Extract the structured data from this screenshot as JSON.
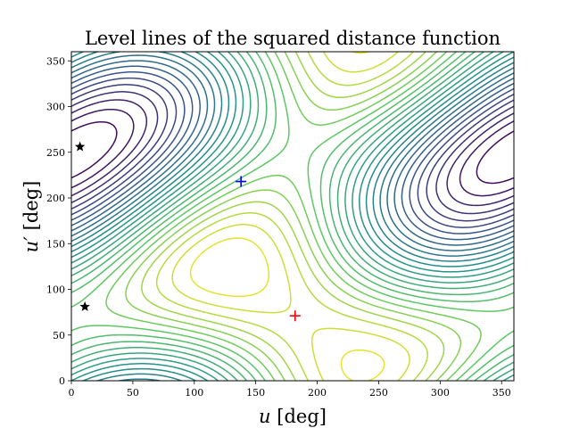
{
  "chart_data": {
    "type": "contour",
    "title": "Level lines of the squared distance function",
    "xlabel_var": "u",
    "xlabel_unit": "[deg]",
    "ylabel_var": "u′",
    "ylabel_unit": "[deg]",
    "xlim": [
      0,
      360
    ],
    "ylim": [
      0,
      360
    ],
    "xticks": [
      0,
      50,
      100,
      150,
      200,
      250,
      300,
      350
    ],
    "yticks": [
      0,
      50,
      100,
      150,
      200,
      250,
      300,
      350
    ],
    "colormap": [
      "#440154",
      "#3b528b",
      "#21918c",
      "#5ec962",
      "#fde725"
    ],
    "grid": false,
    "contour_levels": 26,
    "minimum": {
      "x": 182,
      "y": 71
    },
    "markers": [
      {
        "name": "red-plus",
        "shape": "plus",
        "color": "#ff0000",
        "x": 182,
        "y": 71
      },
      {
        "name": "blue-plus",
        "shape": "plus",
        "color": "#0000ff",
        "x": 138,
        "y": 218
      },
      {
        "name": "star-1",
        "shape": "star",
        "color": "#000000",
        "x": 7,
        "y": 256
      },
      {
        "name": "star-2",
        "shape": "star",
        "color": "#000000",
        "x": 11,
        "y": 81
      }
    ]
  }
}
